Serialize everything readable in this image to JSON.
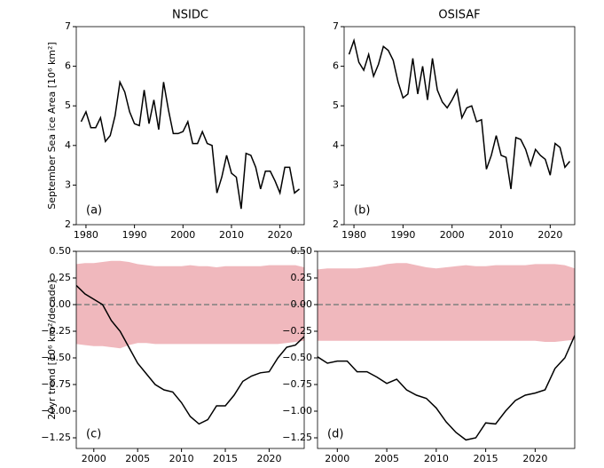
{
  "chart_data": [
    {
      "type": "line",
      "title": "NSIDC",
      "ylabel": "September Sea ice Area [10⁶ km²]",
      "annotation": "(a)",
      "color": "#000000",
      "x": [
        1979,
        1980,
        1981,
        1982,
        1983,
        1984,
        1985,
        1986,
        1987,
        1988,
        1989,
        1990,
        1991,
        1992,
        1993,
        1994,
        1995,
        1996,
        1997,
        1998,
        1999,
        2000,
        2001,
        2002,
        2003,
        2004,
        2005,
        2006,
        2007,
        2008,
        2009,
        2010,
        2011,
        2012,
        2013,
        2014,
        2015,
        2016,
        2017,
        2018,
        2019,
        2020,
        2021,
        2022,
        2023,
        2024
      ],
      "values": [
        4.6,
        4.85,
        4.45,
        4.45,
        4.7,
        4.1,
        4.25,
        4.75,
        5.6,
        5.35,
        4.85,
        4.55,
        4.5,
        5.4,
        4.55,
        5.15,
        4.4,
        5.6,
        4.9,
        4.3,
        4.3,
        4.35,
        4.6,
        4.05,
        4.05,
        4.35,
        4.05,
        4.0,
        2.8,
        3.2,
        3.75,
        3.3,
        3.2,
        2.4,
        3.8,
        3.75,
        3.45,
        2.9,
        3.35,
        3.35,
        3.1,
        2.8,
        3.45,
        3.45,
        2.8,
        2.9
      ],
      "xlim": [
        1978,
        2025
      ],
      "xticks": [
        1980,
        1990,
        2000,
        2010,
        2020
      ],
      "ylim": [
        2,
        7
      ],
      "yticks": [
        2,
        3,
        4,
        5,
        6,
        7
      ]
    },
    {
      "type": "line",
      "title": "OSISAF",
      "annotation": "(b)",
      "color": "#000000",
      "x": [
        1979,
        1980,
        1981,
        1982,
        1983,
        1984,
        1985,
        1986,
        1987,
        1988,
        1989,
        1990,
        1991,
        1992,
        1993,
        1994,
        1995,
        1996,
        1997,
        1998,
        1999,
        2000,
        2001,
        2002,
        2003,
        2004,
        2005,
        2006,
        2007,
        2008,
        2009,
        2010,
        2011,
        2012,
        2013,
        2014,
        2015,
        2016,
        2017,
        2018,
        2019,
        2020,
        2021,
        2022,
        2023,
        2024
      ],
      "values": [
        6.3,
        6.65,
        6.1,
        5.9,
        6.3,
        5.75,
        6.05,
        6.5,
        6.4,
        6.15,
        5.6,
        5.2,
        5.3,
        6.2,
        5.3,
        6.0,
        5.15,
        6.2,
        5.4,
        5.1,
        4.95,
        5.15,
        5.4,
        4.7,
        4.95,
        5.0,
        4.6,
        4.65,
        3.4,
        3.75,
        4.25,
        3.75,
        3.7,
        2.9,
        4.2,
        4.15,
        3.9,
        3.5,
        3.9,
        3.75,
        3.65,
        3.25,
        4.05,
        3.95,
        3.45,
        3.6
      ],
      "xlim": [
        1978,
        2025
      ],
      "xticks": [
        1980,
        1990,
        2000,
        2010,
        2020
      ],
      "ylim": [
        2,
        7
      ],
      "yticks": [
        2,
        3,
        4,
        5,
        6,
        7
      ]
    },
    {
      "type": "band_line",
      "ylabel": "20yr trend [10⁶ km²/decade]",
      "annotation": "(c)",
      "color": "#000000",
      "band_color": "#f0b8bd",
      "hline": 0,
      "hline_color": "#808080",
      "x": [
        1998,
        1999,
        2000,
        2001,
        2002,
        2003,
        2004,
        2005,
        2006,
        2007,
        2008,
        2009,
        2010,
        2011,
        2012,
        2013,
        2014,
        2015,
        2016,
        2017,
        2018,
        2019,
        2020,
        2021,
        2022,
        2023,
        2024
      ],
      "values": [
        0.18,
        0.1,
        0.05,
        0.0,
        -0.15,
        -0.25,
        -0.4,
        -0.55,
        -0.65,
        -0.75,
        -0.8,
        -0.82,
        -0.92,
        -1.05,
        -1.12,
        -1.08,
        -0.95,
        -0.95,
        -0.85,
        -0.72,
        -0.67,
        -0.64,
        -0.63,
        -0.5,
        -0.4,
        -0.38,
        -0.3
      ],
      "band_upper": [
        0.38,
        0.39,
        0.39,
        0.4,
        0.41,
        0.41,
        0.4,
        0.38,
        0.37,
        0.36,
        0.36,
        0.36,
        0.36,
        0.37,
        0.36,
        0.36,
        0.35,
        0.36,
        0.36,
        0.36,
        0.36,
        0.36,
        0.37,
        0.37,
        0.37,
        0.37,
        0.35
      ],
      "band_lower": [
        -0.37,
        -0.38,
        -0.39,
        -0.39,
        -0.4,
        -0.41,
        -0.38,
        -0.36,
        -0.36,
        -0.37,
        -0.37,
        -0.37,
        -0.37,
        -0.37,
        -0.37,
        -0.37,
        -0.37,
        -0.37,
        -0.37,
        -0.37,
        -0.37,
        -0.37,
        -0.37,
        -0.37,
        -0.36,
        -0.35,
        -0.34
      ],
      "xlim": [
        1998,
        2024
      ],
      "xticks": [
        2000,
        2005,
        2010,
        2015,
        2020
      ],
      "ylim": [
        -1.35,
        0.5
      ],
      "yticks": [
        {
          "value": 0.5,
          "label": "0.50"
        },
        0.25,
        {
          "value": 0,
          "label": "0.00"
        },
        {
          "value": -0.25,
          "label": "−0.25"
        },
        {
          "value": -0.5,
          "label": "−0.50"
        },
        {
          "value": -0.75,
          "label": "−0.75"
        },
        {
          "value": -1,
          "label": "−1.00"
        },
        {
          "value": -1.25,
          "label": "−1.25"
        }
      ]
    },
    {
      "type": "band_line",
      "annotation": "(d)",
      "color": "#000000",
      "band_color": "#f0b8bd",
      "hline": 0,
      "hline_color": "#808080",
      "x": [
        1998,
        1999,
        2000,
        2001,
        2002,
        2003,
        2004,
        2005,
        2006,
        2007,
        2008,
        2009,
        2010,
        2011,
        2012,
        2013,
        2014,
        2015,
        2016,
        2017,
        2018,
        2019,
        2020,
        2021,
        2022,
        2023,
        2024
      ],
      "values": [
        -0.49,
        -0.55,
        -0.53,
        -0.53,
        -0.63,
        -0.63,
        -0.68,
        -0.74,
        -0.7,
        -0.8,
        -0.85,
        -0.88,
        -0.97,
        -1.1,
        -1.2,
        -1.27,
        -1.25,
        -1.11,
        -1.12,
        -1.0,
        -0.9,
        -0.85,
        -0.83,
        -0.8,
        -0.6,
        -0.5,
        -0.29
      ],
      "band_upper": [
        0.33,
        0.34,
        0.34,
        0.34,
        0.34,
        0.35,
        0.36,
        0.38,
        0.39,
        0.39,
        0.37,
        0.35,
        0.34,
        0.35,
        0.36,
        0.37,
        0.36,
        0.36,
        0.37,
        0.37,
        0.37,
        0.37,
        0.38,
        0.38,
        0.38,
        0.37,
        0.34
      ],
      "band_lower": [
        -0.34,
        -0.34,
        -0.34,
        -0.34,
        -0.34,
        -0.34,
        -0.34,
        -0.34,
        -0.34,
        -0.34,
        -0.34,
        -0.34,
        -0.34,
        -0.34,
        -0.34,
        -0.34,
        -0.34,
        -0.34,
        -0.34,
        -0.34,
        -0.34,
        -0.34,
        -0.34,
        -0.35,
        -0.35,
        -0.34,
        -0.33
      ],
      "xlim": [
        1998,
        2024
      ],
      "xticks": [
        2000,
        2005,
        2010,
        2015,
        2020
      ],
      "ylim": [
        -1.35,
        0.5
      ],
      "yticks": [
        {
          "value": 0.5,
          "label": "0.50"
        },
        0.25,
        {
          "value": 0,
          "label": "0.00"
        },
        {
          "value": -0.25,
          "label": "−0.25"
        },
        {
          "value": -0.5,
          "label": "−0.50"
        },
        {
          "value": -0.75,
          "label": "−0.75"
        },
        {
          "value": -1,
          "label": "−1.00"
        },
        {
          "value": -1.25,
          "label": "−1.25"
        }
      ]
    }
  ]
}
